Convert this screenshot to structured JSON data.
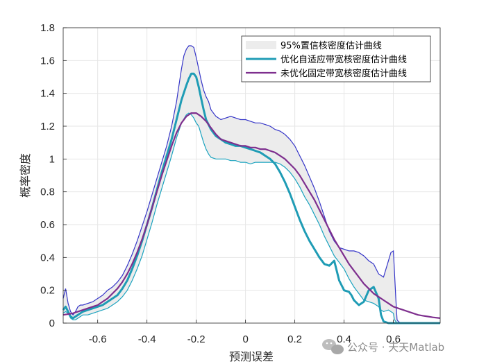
{
  "chart_data": {
    "type": "line",
    "xlabel": "预测误差",
    "ylabel": "概率密度",
    "xlim": [
      -0.74,
      0.79
    ],
    "ylim": [
      0,
      1.8
    ],
    "xticks": [
      -0.6,
      -0.4,
      -0.2,
      0,
      0.2,
      0.4,
      0.6
    ],
    "xtick_labels": [
      "-0.6",
      "-0.4",
      "-0.2",
      "0",
      "0.2",
      "0.4",
      "0.6"
    ],
    "yticks": [
      0,
      0.2,
      0.4,
      0.6,
      0.8,
      1,
      1.2,
      1.4,
      1.6,
      1.8
    ],
    "ytick_labels": [
      "0",
      "0.2",
      "0.4",
      "0.6",
      "0.8",
      "1",
      "1.2",
      "1.4",
      "1.6",
      "1.8"
    ],
    "grid": true,
    "legend_position": "top-right",
    "band": {
      "name": "95%置信核密度估计曲线",
      "color": "#ececec",
      "upper": {
        "color": "#3535c8",
        "x": [
          -0.74,
          -0.73,
          -0.72,
          -0.71,
          -0.7,
          -0.69,
          -0.68,
          -0.67,
          -0.66,
          -0.64,
          -0.62,
          -0.6,
          -0.58,
          -0.56,
          -0.54,
          -0.52,
          -0.5,
          -0.48,
          -0.46,
          -0.44,
          -0.42,
          -0.4,
          -0.38,
          -0.36,
          -0.34,
          -0.32,
          -0.3,
          -0.28,
          -0.27,
          -0.26,
          -0.25,
          -0.24,
          -0.23,
          -0.22,
          -0.21,
          -0.2,
          -0.19,
          -0.18,
          -0.17,
          -0.16,
          -0.15,
          -0.14,
          -0.12,
          -0.1,
          -0.08,
          -0.06,
          -0.04,
          -0.02,
          0,
          0.02,
          0.04,
          0.06,
          0.08,
          0.1,
          0.12,
          0.14,
          0.16,
          0.18,
          0.2,
          0.22,
          0.24,
          0.26,
          0.28,
          0.3,
          0.32,
          0.34,
          0.36,
          0.38,
          0.4,
          0.42,
          0.44,
          0.46,
          0.48,
          0.5,
          0.52,
          0.54,
          0.56,
          0.58,
          0.59,
          0.6,
          0.605,
          0.61,
          0.615,
          0.62,
          0.63,
          0.65,
          0.7,
          0.79
        ],
        "y": [
          0.15,
          0.21,
          0.12,
          0.07,
          0.05,
          0.07,
          0.1,
          0.11,
          0.11,
          0.12,
          0.13,
          0.15,
          0.17,
          0.2,
          0.22,
          0.25,
          0.29,
          0.35,
          0.42,
          0.5,
          0.59,
          0.68,
          0.78,
          0.88,
          0.98,
          1.08,
          1.2,
          1.35,
          1.45,
          1.55,
          1.63,
          1.67,
          1.69,
          1.69,
          1.68,
          1.62,
          1.55,
          1.48,
          1.42,
          1.38,
          1.35,
          1.3,
          1.26,
          1.24,
          1.25,
          1.26,
          1.25,
          1.24,
          1.24,
          1.23,
          1.22,
          1.22,
          1.21,
          1.2,
          1.18,
          1.17,
          1.15,
          1.12,
          1.08,
          1.02,
          0.96,
          0.89,
          0.82,
          0.74,
          0.65,
          0.56,
          0.5,
          0.46,
          0.45,
          0.44,
          0.44,
          0.43,
          0.41,
          0.38,
          0.36,
          0.3,
          0.28,
          0.38,
          0.43,
          0.44,
          0.3,
          0.15,
          0.02,
          0.01,
          0,
          0,
          0,
          0
        ]
      },
      "lower": {
        "color": "#1aa3bf",
        "x": [
          -0.74,
          -0.73,
          -0.72,
          -0.71,
          -0.7,
          -0.69,
          -0.68,
          -0.67,
          -0.66,
          -0.64,
          -0.62,
          -0.6,
          -0.58,
          -0.56,
          -0.54,
          -0.52,
          -0.5,
          -0.48,
          -0.46,
          -0.44,
          -0.42,
          -0.4,
          -0.38,
          -0.36,
          -0.34,
          -0.32,
          -0.3,
          -0.28,
          -0.26,
          -0.24,
          -0.23,
          -0.22,
          -0.21,
          -0.2,
          -0.19,
          -0.18,
          -0.17,
          -0.16,
          -0.15,
          -0.14,
          -0.12,
          -0.1,
          -0.08,
          -0.06,
          -0.04,
          -0.02,
          0,
          0.02,
          0.04,
          0.06,
          0.08,
          0.1,
          0.12,
          0.14,
          0.16,
          0.18,
          0.2,
          0.22,
          0.24,
          0.26,
          0.28,
          0.3,
          0.32,
          0.34,
          0.36,
          0.38,
          0.4,
          0.42,
          0.44,
          0.46,
          0.48,
          0.5,
          0.52,
          0.54,
          0.55,
          0.56,
          0.58,
          0.6,
          0.605,
          0.61,
          0.615,
          0.62,
          0.65,
          0.7,
          0.79
        ],
        "y": [
          0.06,
          0.07,
          0.06,
          0.03,
          0.02,
          0.02,
          0.03,
          0.04,
          0.05,
          0.05,
          0.06,
          0.07,
          0.08,
          0.09,
          0.11,
          0.13,
          0.16,
          0.2,
          0.26,
          0.33,
          0.41,
          0.51,
          0.61,
          0.72,
          0.82,
          0.92,
          1.02,
          1.13,
          1.22,
          1.27,
          1.28,
          1.27,
          1.25,
          1.22,
          1.2,
          1.15,
          1.1,
          1.06,
          1.03,
          1.01,
          1.0,
          1.0,
          1.0,
          0.99,
          0.99,
          0.98,
          0.98,
          0.97,
          0.98,
          0.98,
          0.98,
          0.98,
          0.98,
          0.97,
          0.95,
          0.92,
          0.88,
          0.83,
          0.77,
          0.72,
          0.66,
          0.6,
          0.53,
          0.47,
          0.41,
          0.37,
          0.33,
          0.27,
          0.22,
          0.18,
          0.14,
          0.13,
          0.12,
          0.1,
          0.08,
          0.07,
          0.08,
          0.06,
          0.02,
          0.01,
          0,
          0,
          0,
          0,
          0
        ]
      }
    },
    "series": [
      {
        "name": "优化自适应带宽核密度估计曲线",
        "color": "#1f9cb5",
        "x": [
          -0.74,
          -0.73,
          -0.72,
          -0.71,
          -0.7,
          -0.69,
          -0.68,
          -0.67,
          -0.66,
          -0.64,
          -0.62,
          -0.6,
          -0.58,
          -0.56,
          -0.54,
          -0.52,
          -0.5,
          -0.48,
          -0.46,
          -0.44,
          -0.42,
          -0.4,
          -0.38,
          -0.36,
          -0.34,
          -0.32,
          -0.3,
          -0.28,
          -0.26,
          -0.24,
          -0.23,
          -0.22,
          -0.21,
          -0.2,
          -0.19,
          -0.18,
          -0.17,
          -0.16,
          -0.14,
          -0.12,
          -0.1,
          -0.08,
          -0.06,
          -0.04,
          -0.02,
          0,
          0.02,
          0.04,
          0.06,
          0.08,
          0.1,
          0.12,
          0.14,
          0.16,
          0.18,
          0.2,
          0.22,
          0.24,
          0.26,
          0.28,
          0.3,
          0.32,
          0.34,
          0.36,
          0.38,
          0.4,
          0.42,
          0.43,
          0.44,
          0.46,
          0.48,
          0.5,
          0.52,
          0.54,
          0.55,
          0.56,
          0.58,
          0.6,
          0.605,
          0.61,
          0.615,
          0.62,
          0.65,
          0.7,
          0.79
        ],
        "y": [
          0.08,
          0.1,
          0.07,
          0.04,
          0.03,
          0.04,
          0.05,
          0.06,
          0.07,
          0.08,
          0.09,
          0.1,
          0.11,
          0.13,
          0.15,
          0.17,
          0.21,
          0.26,
          0.33,
          0.41,
          0.5,
          0.6,
          0.7,
          0.81,
          0.92,
          1.02,
          1.12,
          1.24,
          1.36,
          1.45,
          1.49,
          1.52,
          1.52,
          1.5,
          1.44,
          1.37,
          1.3,
          1.24,
          1.18,
          1.14,
          1.12,
          1.1,
          1.09,
          1.08,
          1.08,
          1.07,
          1.06,
          1.05,
          1.04,
          1.02,
          1.0,
          0.97,
          0.92,
          0.86,
          0.79,
          0.71,
          0.63,
          0.56,
          0.5,
          0.45,
          0.4,
          0.36,
          0.35,
          0.38,
          0.26,
          0.2,
          0.19,
          0.17,
          0.14,
          0.11,
          0.13,
          0.2,
          0.22,
          0.15,
          0.05,
          0.01,
          0,
          0,
          0,
          0,
          0,
          0,
          0,
          0,
          0
        ]
      },
      {
        "name": "未优化固定带宽核密度估计曲线",
        "color": "#7e2f8e",
        "x": [
          -0.74,
          -0.72,
          -0.7,
          -0.68,
          -0.66,
          -0.64,
          -0.62,
          -0.6,
          -0.58,
          -0.56,
          -0.54,
          -0.52,
          -0.5,
          -0.48,
          -0.46,
          -0.44,
          -0.42,
          -0.4,
          -0.38,
          -0.36,
          -0.34,
          -0.32,
          -0.3,
          -0.28,
          -0.26,
          -0.24,
          -0.22,
          -0.2,
          -0.18,
          -0.16,
          -0.14,
          -0.12,
          -0.1,
          -0.08,
          -0.06,
          -0.04,
          -0.02,
          0,
          0.02,
          0.04,
          0.06,
          0.08,
          0.1,
          0.12,
          0.14,
          0.16,
          0.18,
          0.2,
          0.22,
          0.24,
          0.26,
          0.28,
          0.3,
          0.32,
          0.34,
          0.36,
          0.38,
          0.4,
          0.42,
          0.44,
          0.46,
          0.48,
          0.5,
          0.52,
          0.54,
          0.56,
          0.58,
          0.6,
          0.62,
          0.64,
          0.66,
          0.68,
          0.7,
          0.72,
          0.74,
          0.76,
          0.79
        ],
        "y": [
          0.05,
          0.055,
          0.06,
          0.07,
          0.08,
          0.09,
          0.1,
          0.11,
          0.13,
          0.15,
          0.18,
          0.21,
          0.25,
          0.3,
          0.36,
          0.43,
          0.51,
          0.6,
          0.7,
          0.8,
          0.9,
          0.99,
          1.08,
          1.16,
          1.22,
          1.26,
          1.28,
          1.28,
          1.26,
          1.23,
          1.19,
          1.15,
          1.12,
          1.11,
          1.1,
          1.09,
          1.08,
          1.08,
          1.07,
          1.07,
          1.06,
          1.06,
          1.05,
          1.04,
          1.02,
          1.0,
          0.97,
          0.94,
          0.9,
          0.85,
          0.8,
          0.75,
          0.69,
          0.63,
          0.57,
          0.51,
          0.46,
          0.41,
          0.36,
          0.32,
          0.28,
          0.24,
          0.21,
          0.18,
          0.16,
          0.14,
          0.12,
          0.1,
          0.09,
          0.08,
          0.07,
          0.06,
          0.05,
          0.045,
          0.04,
          0.035,
          0.03
        ]
      }
    ]
  },
  "watermark": {
    "text": "公众号 · 天天Matlab",
    "icon": "wechat-icon"
  }
}
